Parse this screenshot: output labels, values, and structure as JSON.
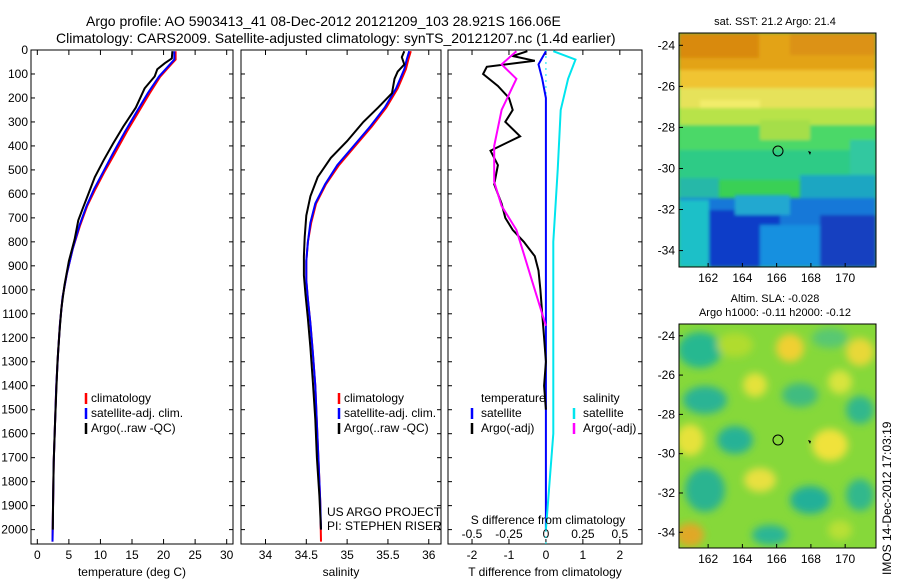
{
  "header": {
    "line1": "Argo profile: AO 5903413_41 08-Dec-2012 20121209_103 28.921S 166.06E",
    "line2": "Climatology: CARS2009. Satellite-adjusted climatology: synTS_20121207.nc (1.4d earlier)"
  },
  "credit": {
    "line1": "US ARGO PROJECT",
    "line2": "PI: STEPHEN RISER"
  },
  "side_stamp": "IMOS 14-Dec-2012 17:03:19",
  "colors": {
    "climatology": "#ff0000",
    "satellite": "#0000ff",
    "argo": "#000000",
    "salinity_satellite": "#00e5ee",
    "salinity_argo": "#ff00ff"
  },
  "chart_data": [
    {
      "id": "temperature",
      "type": "line",
      "xlabel": "temperature (deg C)",
      "ylabel": "",
      "xlim": [
        -1,
        31
      ],
      "ylim": [
        2060,
        0
      ],
      "xticks": [
        0,
        5,
        10,
        15,
        20,
        25,
        30
      ],
      "yticks": [
        0,
        100,
        200,
        300,
        400,
        500,
        600,
        700,
        800,
        900,
        1000,
        1100,
        1200,
        1300,
        1400,
        1500,
        1600,
        1700,
        1800,
        1900,
        2000
      ],
      "legend": [
        "climatology",
        "satellite-adj. clim.",
        "Argo(..raw -QC)"
      ],
      "series": [
        {
          "name": "climatology",
          "color": "#ff0000",
          "points": [
            [
              21.9,
              5
            ],
            [
              21.9,
              40
            ],
            [
              21.2,
              60
            ],
            [
              19.5,
              110
            ],
            [
              17.8,
              180
            ],
            [
              16.0,
              260
            ],
            [
              14.2,
              340
            ],
            [
              12.3,
              430
            ],
            [
              10.6,
              510
            ],
            [
              9.2,
              580
            ],
            [
              7.9,
              650
            ],
            [
              6.8,
              730
            ],
            [
              5.6,
              830
            ],
            [
              4.7,
              930
            ],
            [
              4.0,
              1030
            ],
            [
              3.6,
              1140
            ],
            [
              3.3,
              1260
            ],
            [
              3.0,
              1400
            ],
            [
              2.8,
              1560
            ],
            [
              2.6,
              1720
            ],
            [
              2.5,
              1880
            ],
            [
              2.4,
              2050
            ]
          ]
        },
        {
          "name": "satellite-adj. clim.",
          "color": "#0000ff",
          "points": [
            [
              21.7,
              5
            ],
            [
              21.7,
              40
            ],
            [
              21.0,
              60
            ],
            [
              19.3,
              110
            ],
            [
              17.5,
              180
            ],
            [
              15.7,
              260
            ],
            [
              13.9,
              340
            ],
            [
              12.0,
              430
            ],
            [
              10.4,
              510
            ],
            [
              9.0,
              580
            ],
            [
              7.8,
              650
            ],
            [
              6.7,
              730
            ],
            [
              5.6,
              830
            ],
            [
              4.7,
              930
            ],
            [
              4.0,
              1030
            ],
            [
              3.6,
              1140
            ],
            [
              3.3,
              1260
            ],
            [
              3.0,
              1400
            ],
            [
              2.8,
              1560
            ],
            [
              2.6,
              1720
            ],
            [
              2.5,
              1880
            ],
            [
              2.4,
              2050
            ]
          ]
        },
        {
          "name": "Argo(..raw -QC)",
          "color": "#000000",
          "points": [
            [
              21.4,
              5
            ],
            [
              21.3,
              35
            ],
            [
              20.2,
              55
            ],
            [
              19.0,
              80
            ],
            [
              18.6,
              110
            ],
            [
              17.0,
              160
            ],
            [
              15.6,
              240
            ],
            [
              13.6,
              320
            ],
            [
              12.0,
              390
            ],
            [
              10.5,
              460
            ],
            [
              9.1,
              530
            ],
            [
              8.1,
              600
            ],
            [
              7.2,
              660
            ],
            [
              6.5,
              710
            ],
            [
              5.9,
              790
            ],
            [
              5.0,
              880
            ],
            [
              4.3,
              980
            ],
            [
              3.8,
              1080
            ],
            [
              3.5,
              1180
            ],
            [
              3.2,
              1300
            ],
            [
              3.0,
              1420
            ],
            [
              2.8,
              1560
            ],
            [
              2.6,
              1720
            ],
            [
              2.5,
              1880
            ],
            [
              2.45,
              2000
            ]
          ]
        }
      ]
    },
    {
      "id": "salinity",
      "type": "line",
      "xlabel": "salinity",
      "ylabel": "",
      "xlim": [
        33.7,
        36.15
      ],
      "ylim": [
        2060,
        0
      ],
      "xticks": [
        34,
        34.5,
        35,
        35.5,
        36
      ],
      "legend": [
        "climatology",
        "satellite-adj. clim.",
        "Argo(..raw -QC)"
      ],
      "series": [
        {
          "name": "climatology",
          "color": "#ff0000",
          "points": [
            [
              35.78,
              5
            ],
            [
              35.75,
              40
            ],
            [
              35.72,
              80
            ],
            [
              35.62,
              160
            ],
            [
              35.48,
              240
            ],
            [
              35.3,
              320
            ],
            [
              35.1,
              400
            ],
            [
              34.9,
              480
            ],
            [
              34.74,
              560
            ],
            [
              34.62,
              640
            ],
            [
              34.56,
              720
            ],
            [
              34.52,
              800
            ],
            [
              34.5,
              880
            ],
            [
              34.5,
              960
            ],
            [
              34.52,
              1040
            ],
            [
              34.55,
              1140
            ],
            [
              34.58,
              1260
            ],
            [
              34.61,
              1400
            ],
            [
              34.63,
              1560
            ],
            [
              34.65,
              1720
            ],
            [
              34.67,
              1880
            ],
            [
              34.68,
              2050
            ]
          ]
        },
        {
          "name": "satellite-adj. clim.",
          "color": "#0000ff",
          "points": [
            [
              35.76,
              5
            ],
            [
              35.73,
              40
            ],
            [
              35.7,
              80
            ],
            [
              35.6,
              160
            ],
            [
              35.46,
              240
            ],
            [
              35.28,
              320
            ],
            [
              35.08,
              400
            ],
            [
              34.88,
              480
            ],
            [
              34.73,
              560
            ],
            [
              34.61,
              640
            ],
            [
              34.55,
              720
            ],
            [
              34.52,
              800
            ],
            [
              34.5,
              880
            ],
            [
              34.5,
              960
            ],
            [
              34.52,
              1040
            ],
            [
              34.55,
              1140
            ],
            [
              34.58,
              1260
            ],
            [
              34.61,
              1400
            ],
            [
              34.63,
              1560
            ],
            [
              34.65,
              1720
            ],
            [
              34.67,
              1880
            ],
            [
              34.68,
              2000
            ]
          ]
        },
        {
          "name": "Argo(..raw -QC)",
          "color": "#000000",
          "points": [
            [
              35.7,
              5
            ],
            [
              35.67,
              30
            ],
            [
              35.7,
              60
            ],
            [
              35.62,
              90
            ],
            [
              35.58,
              120
            ],
            [
              35.55,
              180
            ],
            [
              35.38,
              240
            ],
            [
              35.2,
              300
            ],
            [
              35.0,
              380
            ],
            [
              34.8,
              450
            ],
            [
              34.64,
              530
            ],
            [
              34.55,
              610
            ],
            [
              34.5,
              690
            ],
            [
              34.48,
              780
            ],
            [
              34.47,
              860
            ],
            [
              34.47,
              940
            ],
            [
              34.49,
              1020
            ],
            [
              34.52,
              1120
            ],
            [
              34.55,
              1240
            ],
            [
              34.58,
              1380
            ],
            [
              34.61,
              1540
            ],
            [
              34.63,
              1700
            ],
            [
              34.66,
              1860
            ],
            [
              34.68,
              2000
            ]
          ]
        }
      ]
    },
    {
      "id": "difference",
      "type": "line",
      "xlabel": "T difference from climatology",
      "top_label": "S difference from climatology",
      "xlim": [
        -2.65,
        2.6
      ],
      "ylim": [
        2060,
        0
      ],
      "xticks": [
        -2,
        -1,
        0,
        1,
        2
      ],
      "s_ticks": [
        -0.5,
        -0.25,
        0,
        0.25,
        0.5
      ],
      "s_tick_labels": [
        "-0.5",
        "-0.25",
        "0",
        "0.25",
        "0.5"
      ],
      "legend_temperature": {
        "title": "temperature",
        "satellite": "satellite",
        "argo": "Argo(-adj)"
      },
      "legend_salinity": {
        "title": "salinity",
        "satellite": "satellite",
        "argo": "Argo(-adj)"
      },
      "series": [
        {
          "name": "temperature satellite",
          "color": "#0000ff",
          "points": [
            [
              0.0,
              5
            ],
            [
              -0.2,
              60
            ],
            [
              -0.1,
              120
            ],
            [
              0.0,
              200
            ],
            [
              0.0,
              400
            ],
            [
              0.0,
              700
            ],
            [
              0.0,
              1000
            ],
            [
              0.0,
              1400
            ],
            [
              0.0,
              1800
            ],
            [
              0.0,
              2000
            ]
          ]
        },
        {
          "name": "temperature Argo(-adj)",
          "color": "#000000",
          "points": [
            [
              -0.5,
              5
            ],
            [
              -0.9,
              25
            ],
            [
              -0.3,
              45
            ],
            [
              -1.6,
              70
            ],
            [
              -1.7,
              100
            ],
            [
              -1.3,
              150
            ],
            [
              -1.0,
              200
            ],
            [
              -0.9,
              250
            ],
            [
              -1.1,
              300
            ],
            [
              -0.7,
              360
            ],
            [
              -1.5,
              420
            ],
            [
              -1.3,
              480
            ],
            [
              -1.4,
              560
            ],
            [
              -1.2,
              640
            ],
            [
              -1.1,
              700
            ],
            [
              -0.9,
              750
            ],
            [
              -0.6,
              800
            ],
            [
              -0.3,
              860
            ],
            [
              -0.2,
              920
            ],
            [
              -0.15,
              1000
            ],
            [
              -0.1,
              1100
            ],
            [
              -0.05,
              1200
            ],
            [
              0.0,
              1300
            ],
            [
              -0.05,
              1400
            ],
            [
              0.0,
              1500
            ]
          ]
        },
        {
          "name": "salinity satellite",
          "color": "#00e5ee",
          "points": [
            [
              0.05,
              5
            ],
            [
              0.2,
              40
            ],
            [
              0.15,
              120
            ],
            [
              0.1,
              250
            ],
            [
              0.08,
              500
            ],
            [
              0.05,
              800
            ],
            [
              0.05,
              1200
            ],
            [
              0.05,
              1600
            ],
            [
              0.0,
              2000
            ]
          ]
        },
        {
          "name": "salinity Argo(-adj)",
          "color": "#ff00ff",
          "points": [
            [
              -0.2,
              5
            ],
            [
              -0.3,
              60
            ],
            [
              -0.2,
              120
            ],
            [
              -0.3,
              250
            ],
            [
              -0.35,
              400
            ],
            [
              -0.35,
              550
            ],
            [
              -0.3,
              650
            ],
            [
              -0.2,
              750
            ],
            [
              -0.15,
              850
            ],
            [
              -0.1,
              950
            ],
            [
              -0.05,
              1050
            ],
            [
              0.0,
              1150
            ]
          ]
        }
      ]
    },
    {
      "id": "sst-map",
      "type": "heatmap",
      "title": "sat. SST: 21.2  Argo: 21.4",
      "xlim": [
        160.3,
        171.8
      ],
      "ylim": [
        -34.8,
        -23.4
      ],
      "xticks": [
        162,
        164,
        166,
        168,
        170
      ],
      "yticks": [
        -24,
        -26,
        -28,
        -30,
        -32,
        -34
      ],
      "argo_position": [
        166.06,
        -28.92
      ]
    },
    {
      "id": "sla-map",
      "type": "heatmap",
      "title": "Altim. SLA: -0.028",
      "subtitle": "Argo h1000: -0.11  h2000: -0.12",
      "xlim": [
        160.3,
        171.8
      ],
      "ylim": [
        -34.8,
        -23.4
      ],
      "xticks": [
        162,
        164,
        166,
        168,
        170
      ],
      "yticks": [
        -24,
        -26,
        -28,
        -30,
        -32,
        -34
      ],
      "argo_position": [
        166.06,
        -28.92
      ]
    }
  ]
}
